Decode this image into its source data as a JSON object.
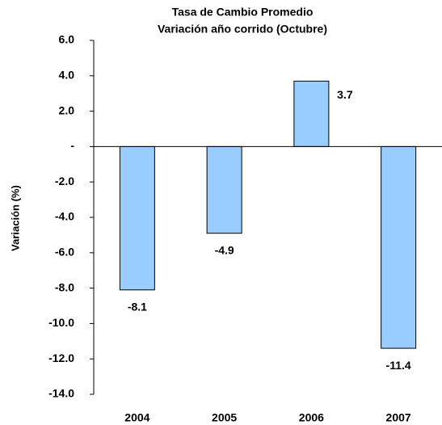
{
  "chart_data": {
    "type": "bar",
    "title": "Tasa de Cambio Promedio",
    "subtitle": "Variación año corrido (Octubre)",
    "y_label": "Variación (%)",
    "categories": [
      "2004",
      "2005",
      "2006",
      "2007"
    ],
    "values": [
      -8.1,
      -4.9,
      3.7,
      -11.4
    ],
    "color": "#99ccff",
    "ylim": [
      -14,
      6
    ],
    "yticks": [
      {
        "value": 6,
        "label": "6.0"
      },
      {
        "value": 4,
        "label": "4.0"
      },
      {
        "value": 2,
        "label": "2.0"
      },
      {
        "value": 0,
        "label": "-"
      },
      {
        "value": -2,
        "label": "-2.0"
      },
      {
        "value": -4,
        "label": "-4.0"
      },
      {
        "value": -6,
        "label": "-6.0"
      },
      {
        "value": -8,
        "label": "-8.0"
      },
      {
        "value": -10,
        "label": "-10.0"
      },
      {
        "value": -12,
        "label": "-12.0"
      },
      {
        "value": -14,
        "label": "-14.0"
      }
    ],
    "grid": false
  }
}
